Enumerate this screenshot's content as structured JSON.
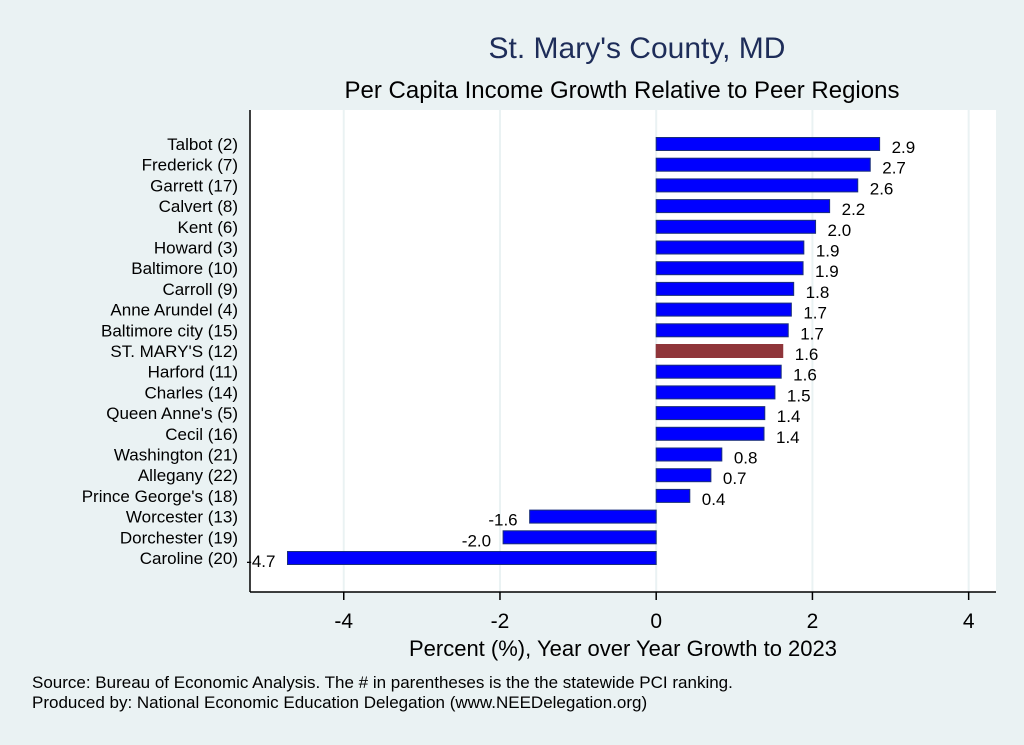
{
  "chart_data": {
    "type": "bar",
    "orientation": "horizontal",
    "title": "St. Mary's County, MD",
    "subtitle": "Per Capita Income Growth Relative to Peer Regions",
    "xlabel": "Percent (%), Year over Year Growth to 2023",
    "ylabel": "",
    "xlim": [
      -5.2,
      4.35
    ],
    "xticks": [
      -4,
      -2,
      0,
      2,
      4
    ],
    "grid": true,
    "categories": [
      "Talbot  (2)",
      "Frederick  (7)",
      "Garrett (17)",
      "Calvert  (8)",
      "Kent  (6)",
      "Howard  (3)",
      "Baltimore (10)",
      "Carroll  (9)",
      "Anne Arundel  (4)",
      "Baltimore city (15)",
      "ST. MARY'S (12)",
      "Harford (11)",
      "Charles (14)",
      "Queen Anne's  (5)",
      "Cecil (16)",
      "Washington (21)",
      "Allegany (22)",
      "Prince George's (18)",
      "Worcester (13)",
      "Dorchester (19)",
      "Caroline (20)"
    ],
    "values": [
      2.86,
      2.74,
      2.58,
      2.22,
      2.04,
      1.89,
      1.88,
      1.76,
      1.73,
      1.69,
      1.62,
      1.6,
      1.52,
      1.39,
      1.38,
      0.84,
      0.7,
      0.43,
      -1.62,
      -1.96,
      -4.72
    ],
    "labels": [
      "2.9",
      "2.7",
      "2.6",
      "2.2",
      "2.0",
      "1.9",
      "1.9",
      "1.8",
      "1.7",
      "1.7",
      "1.6",
      "1.6",
      "1.5",
      "1.4",
      "1.4",
      "0.8",
      "0.7",
      "0.4",
      "-1.6",
      "-2.0",
      "-4.7"
    ],
    "highlight_index": 10,
    "colors": {
      "bar": "#0000ff",
      "bar_edge": "#1a2f7a",
      "highlight": "#8f353a",
      "grid": "#eaf2f3",
      "plot_bg": "#ffffff",
      "title": "#1e2d59"
    }
  },
  "footer": {
    "source": "Source: Bureau of Economic Analysis. The # in parentheses is the the statewide PCI ranking.",
    "produced_by": "Produced by: National Economic Education Delegation (www.NEEDelegation.org)"
  }
}
